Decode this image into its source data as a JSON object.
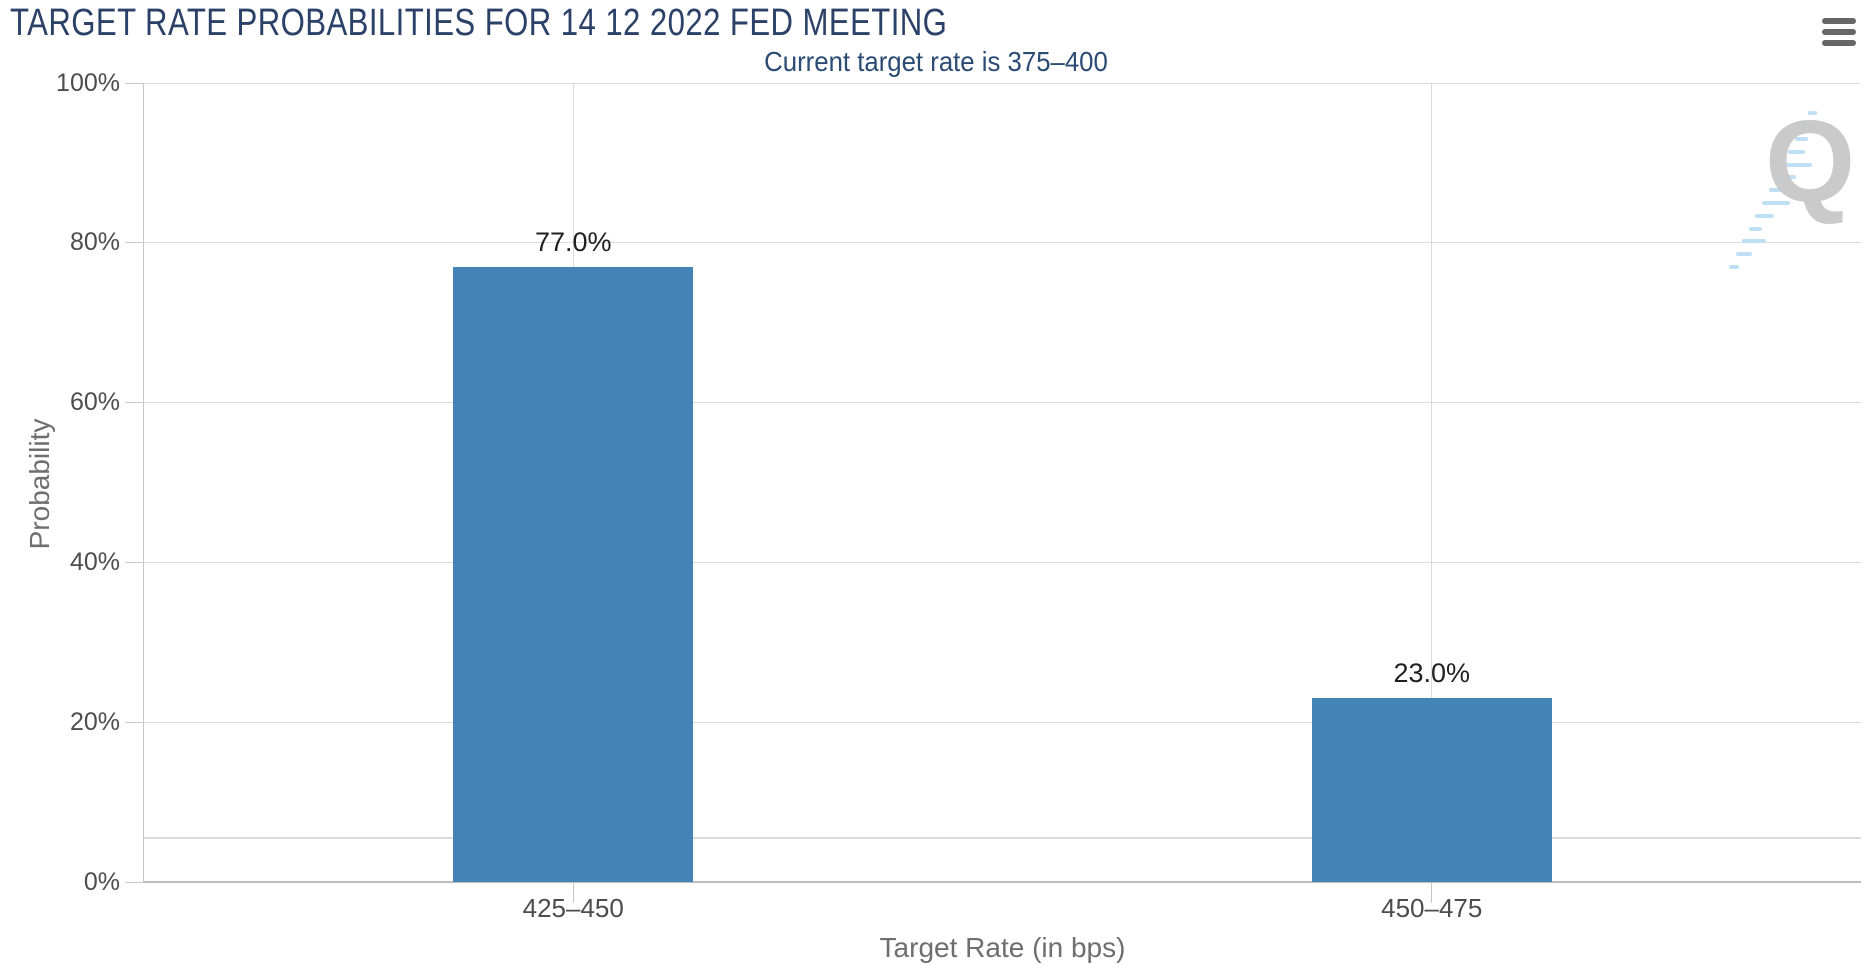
{
  "header": {
    "menu_icon": "hamburger-menu-icon"
  },
  "chart_data": {
    "type": "bar",
    "title": "TARGET RATE PROBABILITIES FOR 14 12 2022 FED MEETING",
    "subtitle": "Current target rate is 375–400",
    "categories": [
      "425–450",
      "450–475"
    ],
    "values": [
      77.0,
      23.0
    ],
    "value_labels": [
      "77.0%",
      "23.0%"
    ],
    "xlabel": "Target Rate (in bps)",
    "ylabel": "Probability",
    "ylim": [
      0,
      100
    ],
    "yticks": [
      0,
      20,
      40,
      60,
      80,
      100
    ],
    "ytick_labels": [
      "0%",
      "20%",
      "40%",
      "60%",
      "80%",
      "100%"
    ],
    "faint_line_value": 5.6,
    "grid": true,
    "legend": "none",
    "bar_color": "#4383B5"
  },
  "watermark": {
    "letter": "Q",
    "icon": "quandl-watermark"
  },
  "colors": {
    "title": "#2B4168",
    "subtitle": "#2B4A74",
    "axis_title": "#6E6E6E",
    "tick_label": "#4D4D4D",
    "data_label": "#1F1F1F",
    "grid_line": "#DBDBDB",
    "axis_line": "#C8C8C8",
    "axis_line_strong": "#BDBDBD",
    "bar": "#4383B5",
    "menu_icon": "#666666",
    "watermark_q": "#C8C8C8",
    "watermark_dash": "#BFE0F4"
  }
}
